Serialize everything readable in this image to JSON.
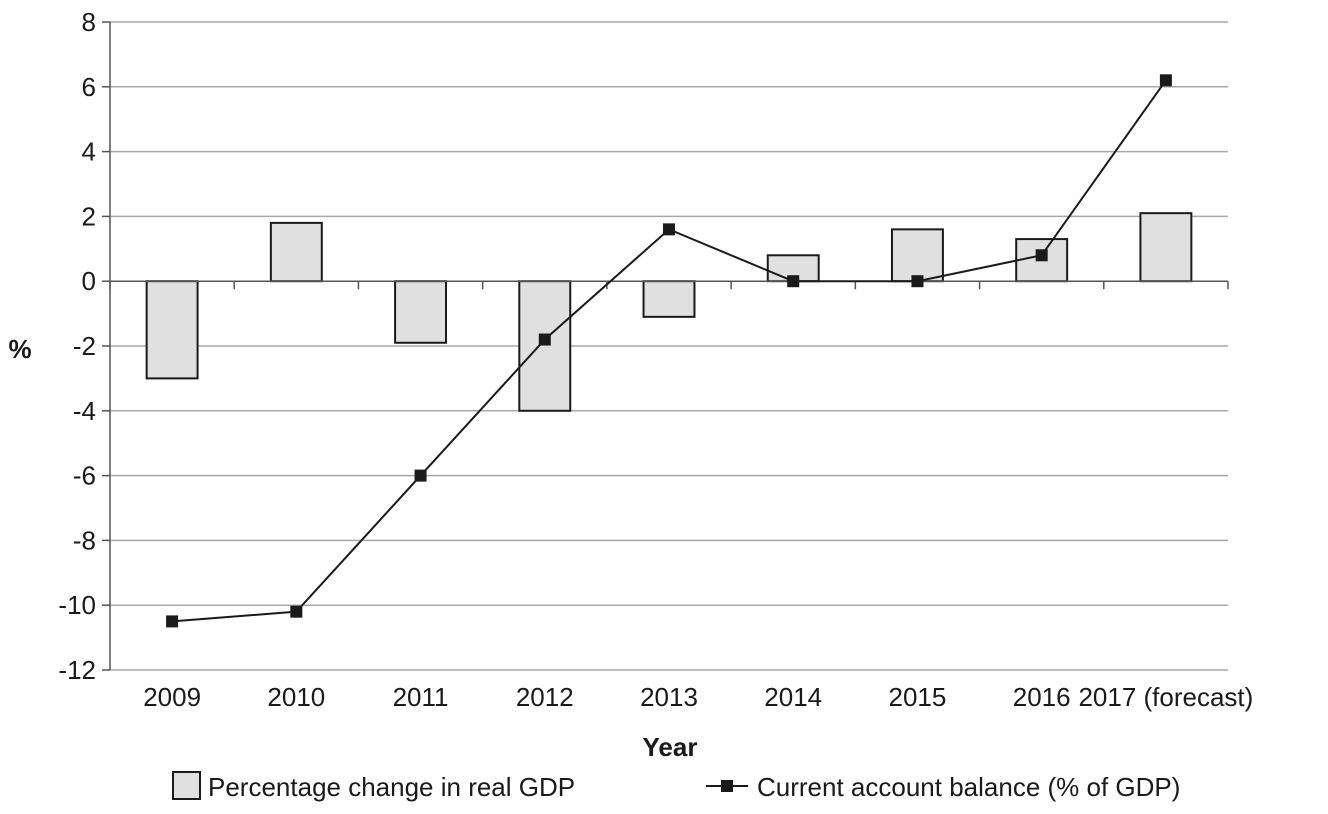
{
  "chart_data": {
    "type": "bar",
    "categories": [
      "2009",
      "2010",
      "2011",
      "2012",
      "2013",
      "2014",
      "2015",
      "2016",
      "2017 (forecast)"
    ],
    "series": [
      {
        "name": "Percentage change in real GDP",
        "type": "bar",
        "values": [
          -3.0,
          1.8,
          -1.9,
          -4.0,
          -1.1,
          0.8,
          1.6,
          1.3,
          2.1
        ],
        "color": "#e0e0e0"
      },
      {
        "name": "Current account balance (% of GDP)",
        "type": "line",
        "values": [
          -10.5,
          -10.2,
          -6.0,
          -1.8,
          1.6,
          0.0,
          0.0,
          0.8,
          6.2
        ],
        "color": "#1a1a1a"
      }
    ],
    "xlabel": "Year",
    "ylabel": "%",
    "ylim": [
      -12,
      8
    ],
    "yticks": [
      "8",
      "6",
      "4",
      "2",
      "0",
      "-2",
      "-4",
      "-6",
      "-8",
      "-10",
      "-12"
    ],
    "grid": true,
    "legend_position": "bottom"
  }
}
